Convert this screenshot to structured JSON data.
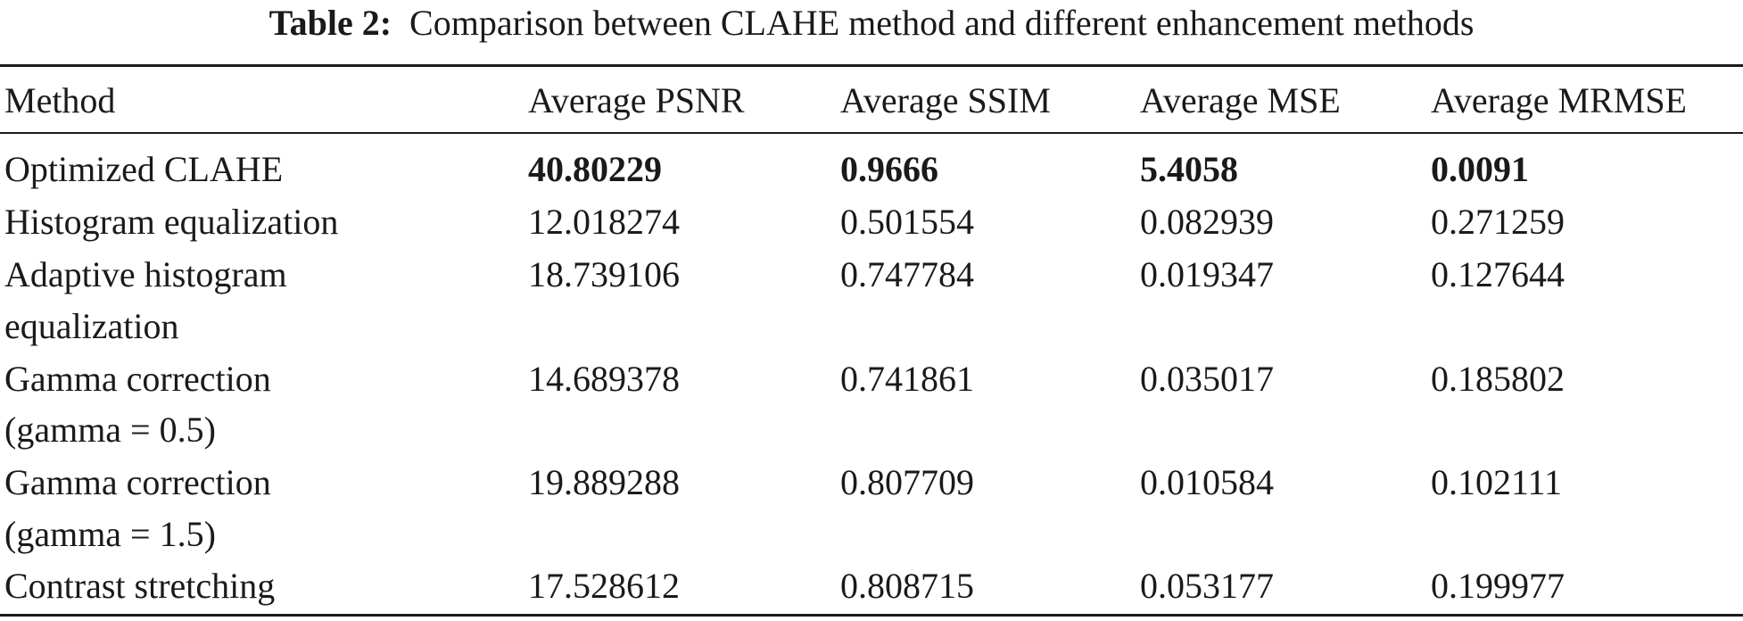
{
  "caption": {
    "label": "Table 2:",
    "text": "Comparison between CLAHE method and different enhancement methods"
  },
  "table": {
    "headers": [
      "Method",
      "Average PSNR",
      "Average SSIM",
      "Average MSE",
      "Average MRMSE"
    ],
    "rows": [
      {
        "method": [
          "Optimized CLAHE"
        ],
        "values": [
          "40.80229",
          "0.9666",
          "5.4058",
          "0.0091"
        ],
        "bold_values": true
      },
      {
        "method": [
          "Histogram equalization"
        ],
        "values": [
          "12.018274",
          "0.501554",
          "0.082939",
          "0.271259"
        ],
        "bold_values": false
      },
      {
        "method": [
          "Adaptive histogram",
          "equalization"
        ],
        "values": [
          "18.739106",
          "0.747784",
          "0.019347",
          "0.127644"
        ],
        "bold_values": false
      },
      {
        "method": [
          "Gamma correction",
          "(gamma = 0.5)"
        ],
        "values": [
          "14.689378",
          "0.741861",
          "0.035017",
          "0.185802"
        ],
        "bold_values": false
      },
      {
        "method": [
          "Gamma correction",
          "(gamma = 1.5)"
        ],
        "values": [
          "19.889288",
          "0.807709",
          "0.010584",
          "0.102111"
        ],
        "bold_values": false
      },
      {
        "method": [
          "Contrast stretching"
        ],
        "values": [
          "17.528612",
          "0.808715",
          "0.053177",
          "0.199977"
        ],
        "bold_values": false
      }
    ]
  }
}
